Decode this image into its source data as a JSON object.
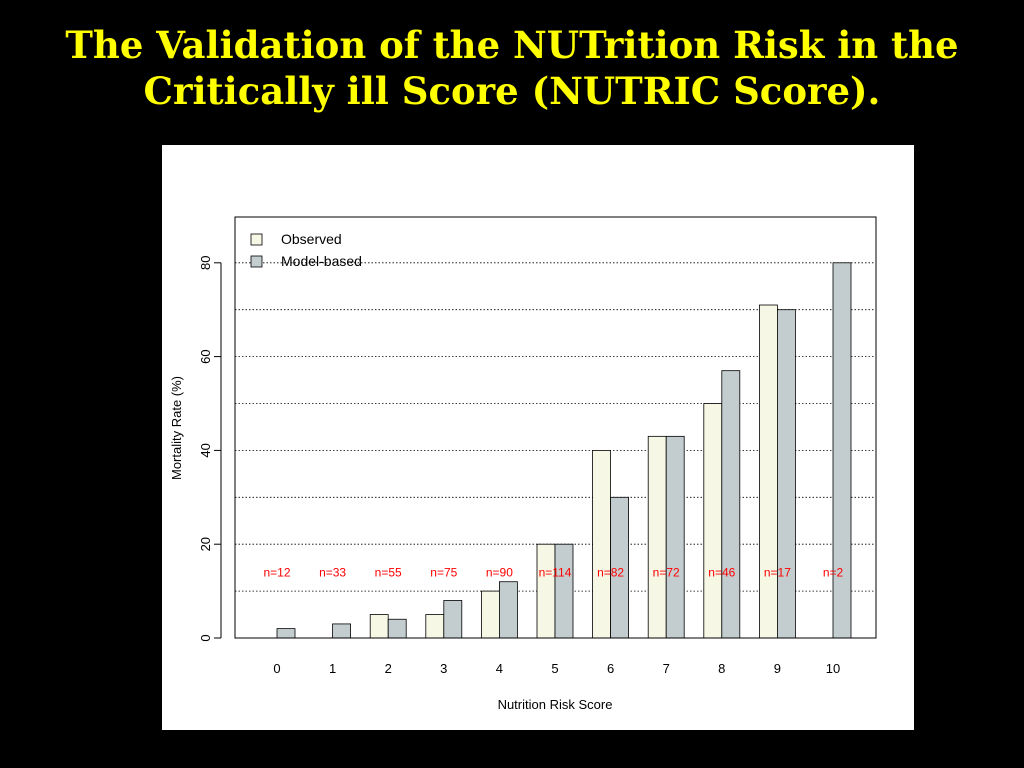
{
  "slide": {
    "title_line1": "The Validation of the NUTrition Risk in the",
    "title_line2": "Critically ill Score (NUTRIC Score).",
    "title_color": "#ffff00",
    "background_color": "#000000"
  },
  "chart_data": {
    "type": "bar",
    "title": "",
    "xlabel": "Nutrition Risk Score",
    "ylabel": "Mortality Rate (%)",
    "categories": [
      "0",
      "1",
      "2",
      "3",
      "4",
      "5",
      "6",
      "7",
      "8",
      "9",
      "10"
    ],
    "series": [
      {
        "name": "Observed",
        "values": [
          0,
          0,
          5,
          5,
          10,
          20,
          40,
          43,
          50,
          71,
          0
        ],
        "color": "#f7f7e6"
      },
      {
        "name": "Model-based",
        "values": [
          2,
          3,
          4,
          8,
          12,
          20,
          30,
          43,
          57,
          70,
          80
        ],
        "color": "#c3ccce"
      }
    ],
    "annotations": [
      "n=12",
      "n=33",
      "n=55",
      "n=75",
      "n=90",
      "n=114",
      "n=82",
      "n=72",
      "n=46",
      "n=17",
      "n=2"
    ],
    "annotation_value": 14,
    "annotation_color": "#ff0000",
    "ylim": [
      0,
      90
    ],
    "y_ticks": [
      0,
      20,
      40,
      60,
      80
    ],
    "gridlines": [
      10,
      20,
      30,
      40,
      50,
      60,
      70,
      80
    ],
    "grid": "dotted",
    "legend_position": "top-left"
  }
}
